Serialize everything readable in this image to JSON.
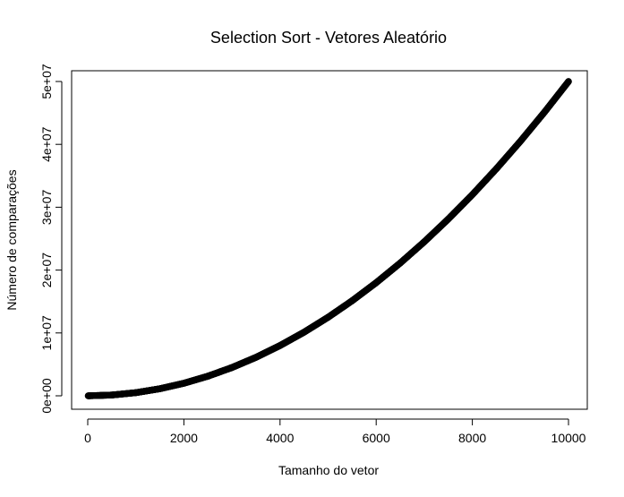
{
  "chart_data": {
    "type": "scatter",
    "title": "Selection Sort - Vetores Aleatório",
    "xlabel": "Tamanho do vetor",
    "ylabel": "Número de comparações",
    "xlim": [
      0,
      10000
    ],
    "ylim": [
      0,
      50000000
    ],
    "x_ticks": [
      0,
      2000,
      4000,
      6000,
      8000,
      10000
    ],
    "x_tick_labels": [
      "0",
      "2000",
      "4000",
      "6000",
      "8000",
      "10000"
    ],
    "y_ticks": [
      0,
      10000000,
      20000000,
      30000000,
      40000000,
      50000000
    ],
    "y_tick_labels": [
      "0e+00",
      "1e+07",
      "2e+07",
      "3e+07",
      "4e+07",
      "5e+07"
    ],
    "grid": false,
    "marker": "open-circle",
    "series": [
      {
        "x": [
          10,
          500,
          1000,
          1500,
          2000,
          2500,
          3000,
          3500,
          4000,
          4500,
          5000,
          5500,
          6000,
          6500,
          7000,
          7500,
          8000,
          8500,
          9000,
          9500,
          10000
        ],
        "y": [
          45,
          124750,
          499500,
          1124250,
          1999000,
          3123750,
          4498500,
          6123250,
          7998000,
          10122750,
          12497500,
          15122250,
          17997000,
          21121750,
          24496500,
          28121250,
          31996000,
          36120750,
          40495500,
          45120250,
          49995000
        ]
      }
    ],
    "colors": {
      "points": "#000000",
      "axes": "#000000",
      "background": "#ffffff"
    }
  }
}
